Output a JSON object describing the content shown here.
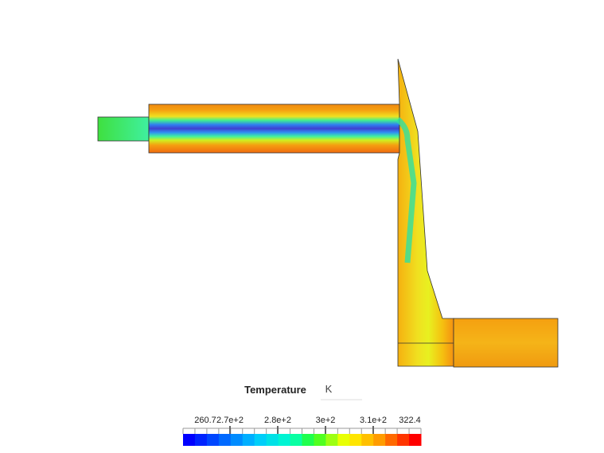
{
  "legend": {
    "title": "Temperature",
    "unit": "K",
    "ticks": [
      "260.7",
      "2.7e+2",
      "2.8e+2",
      "3e+2",
      "3.1e+2",
      "322.4"
    ]
  }
}
